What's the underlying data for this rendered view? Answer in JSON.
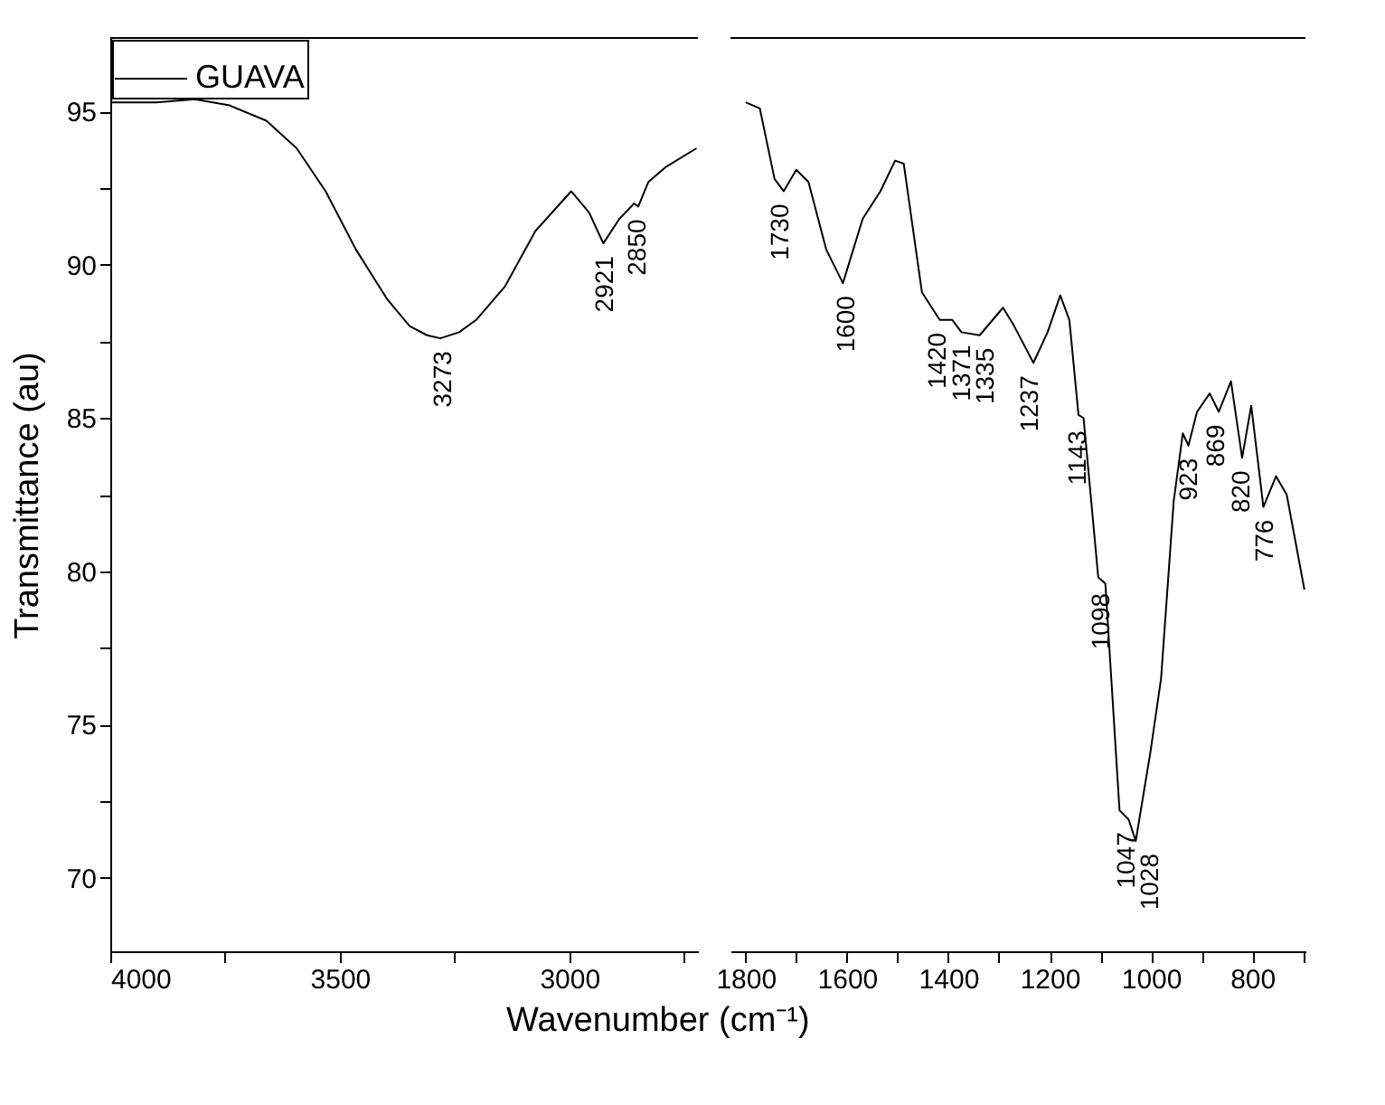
{
  "chart_data": [
    {
      "type": "line",
      "xlabel": "Wavenumber (cm⁻¹)",
      "ylabel": "Transmittance (au)",
      "legend": "top left",
      "grid": false,
      "marker": "none",
      "x": [
        4000,
        3900,
        3816,
        3740,
        3660,
        3594,
        3531,
        3465,
        3398,
        3348,
        3310,
        3281,
        3240,
        3203,
        3140,
        3074,
        2996,
        2957,
        2926,
        2891,
        2859,
        2850,
        2828,
        2789,
        2723
      ],
      "series": [
        {
          "name": "GUAVA",
          "color": "#000000",
          "values": [
            95.3,
            95.3,
            95.4,
            95.2,
            94.7,
            93.8,
            92.4,
            90.5,
            88.9,
            88.0,
            87.7,
            87.6,
            87.8,
            88.2,
            89.3,
            91.1,
            92.4,
            91.7,
            90.7,
            91.5,
            92.0,
            91.9,
            92.7,
            93.2,
            93.8
          ]
        }
      ],
      "xlim": [
        4000,
        2720
      ],
      "ylim": [
        67.6,
        97.4
      ],
      "xticks": [
        4000,
        {
          "value": 3750,
          "label": null
        },
        3500,
        {
          "value": 3250,
          "label": null
        },
        3000,
        {
          "value": 2750,
          "label": null
        }
      ],
      "yticks": [
        70,
        {
          "value": 72.5,
          "label": null
        },
        75,
        {
          "value": 77.5,
          "label": null
        },
        80,
        {
          "value": 82.5,
          "label": null
        },
        85,
        {
          "value": 87.5,
          "label": null
        },
        90,
        {
          "value": 92.5,
          "label": null
        },
        95
      ],
      "annotations": [
        {
          "text": "3273",
          "x": 3273,
          "y": 87.6
        },
        {
          "text": "2921",
          "x": 2921,
          "y": 90.7
        },
        {
          "text": "2850",
          "x": 2850,
          "y": 91.9
        }
      ]
    },
    {
      "type": "line",
      "tick_labels": "x",
      "grid": false,
      "marker": "none",
      "x": [
        1800,
        1772,
        1743,
        1725,
        1700,
        1676,
        1641,
        1608,
        1569,
        1534,
        1505,
        1488,
        1452,
        1417,
        1392,
        1374,
        1338,
        1292,
        1270,
        1232,
        1204,
        1179,
        1161,
        1143,
        1133,
        1104,
        1090,
        1062,
        1044,
        1030,
        1001,
        980,
        955,
        937,
        926,
        909,
        884,
        866,
        842,
        820,
        802,
        778,
        753,
        732,
        697
      ],
      "series": [
        {
          "color": "#000000",
          "values": [
            95.3,
            95.1,
            92.8,
            92.4,
            93.1,
            92.7,
            90.5,
            89.4,
            91.5,
            92.4,
            93.4,
            93.3,
            89.1,
            88.2,
            88.2,
            87.8,
            87.7,
            88.6,
            88.0,
            86.8,
            87.8,
            89.0,
            88.2,
            85.1,
            85.0,
            79.8,
            79.6,
            72.2,
            71.9,
            71.2,
            74.1,
            76.5,
            82.3,
            84.5,
            84.1,
            85.2,
            85.8,
            85.2,
            86.2,
            83.7,
            85.4,
            82.1,
            83.1,
            82.5,
            79.4
          ]
        }
      ],
      "xlim": [
        1830,
        695
      ],
      "ylim": [
        67.6,
        97.4
      ],
      "xticks": [
        1800,
        {
          "value": 1700,
          "label": null
        },
        1600,
        {
          "value": 1500,
          "label": null
        },
        1400,
        {
          "value": 1300,
          "label": null
        },
        1200,
        {
          "value": 1100,
          "label": null
        },
        1000,
        {
          "value": 900,
          "label": null
        },
        800,
        {
          "value": 700,
          "label": null
        }
      ],
      "annotations": [
        {
          "text": "1730",
          "x": 1730,
          "y": 92.4
        },
        {
          "text": "1600",
          "x": 1600,
          "y": 89.4
        },
        {
          "text": "1420",
          "x": 1420,
          "y": 88.2
        },
        {
          "text": "1371",
          "x": 1371,
          "y": 87.8
        },
        {
          "text": "1335",
          "x": 1335,
          "y": 87.7
        },
        {
          "text": "1237",
          "x": 1237,
          "y": 86.8
        },
        {
          "text": "1143",
          "x": 1143,
          "y": 85.0
        },
        {
          "text": "1098",
          "x": 1098,
          "y": 79.7
        },
        {
          "text": "1047",
          "x": 1047,
          "y": 71.9
        },
        {
          "text": "1028",
          "x": 1028,
          "y": 71.2
        },
        {
          "text": "923",
          "x": 923,
          "y": 84.1
        },
        {
          "text": "869",
          "x": 869,
          "y": 85.2
        },
        {
          "text": "820",
          "x": 820,
          "y": 83.7
        },
        {
          "text": "776",
          "x": 776,
          "y": 82.1
        }
      ]
    }
  ]
}
